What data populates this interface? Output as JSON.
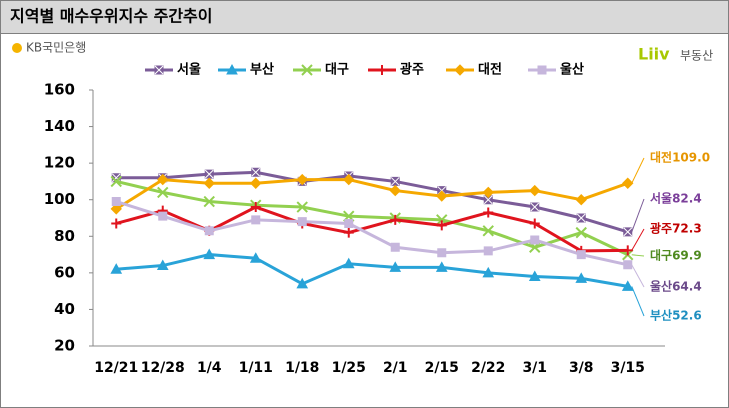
{
  "chart_data": {
    "type": "line",
    "title": "지역별 매수우위지수 주간추이",
    "logos": [
      "KB국민은행",
      "Liiv",
      "부동산"
    ],
    "categories": [
      "12/21",
      "12/28",
      "1/4",
      "1/11",
      "1/18",
      "1/25",
      "2/1",
      "2/15",
      "2/22",
      "3/1",
      "3/8",
      "3/15"
    ],
    "ylim": [
      20,
      160
    ],
    "yticks": [
      20,
      40,
      60,
      80,
      100,
      120,
      140,
      160
    ],
    "grid": false,
    "series": [
      {
        "name": "서울",
        "color": "#7b5c98",
        "marker": "xsquare",
        "values": [
          112,
          112,
          114,
          115,
          110,
          113,
          110,
          105,
          100,
          96,
          90,
          82.4
        ],
        "value_labels": [
          null,
          null,
          null,
          null,
          null,
          null,
          null,
          null,
          null,
          null,
          null,
          "서울82.4"
        ]
      },
      {
        "name": "부산",
        "color": "#29a3d8",
        "marker": "triangle",
        "values": [
          62,
          64,
          70,
          68,
          54,
          65,
          63,
          63,
          60,
          58,
          57,
          52.6
        ],
        "value_labels": [
          null,
          null,
          null,
          null,
          null,
          null,
          null,
          null,
          null,
          null,
          null,
          "부산52.6"
        ]
      },
      {
        "name": "대구",
        "color": "#92d050",
        "marker": "x",
        "values": [
          110,
          104,
          99,
          97,
          96,
          91,
          90,
          89,
          83,
          74,
          82,
          69.9
        ],
        "value_labels": [
          null,
          null,
          null,
          null,
          null,
          null,
          null,
          null,
          null,
          null,
          null,
          "대구69.9"
        ]
      },
      {
        "name": "광주",
        "color": "#e0141e",
        "marker": "plus",
        "values": [
          87,
          94,
          83,
          96,
          87,
          82,
          89,
          86,
          93,
          87,
          72,
          72.3
        ],
        "value_labels": [
          null,
          null,
          null,
          null,
          null,
          null,
          null,
          null,
          null,
          null,
          null,
          "광주72.3"
        ]
      },
      {
        "name": "대전",
        "color": "#f5a800",
        "marker": "diamond",
        "values": [
          95,
          111,
          109,
          109,
          111,
          111,
          105,
          102,
          104,
          105,
          100,
          109
        ],
        "value_labels": [
          null,
          null,
          null,
          null,
          null,
          null,
          null,
          null,
          null,
          null,
          null,
          "대전109.0"
        ]
      },
      {
        "name": "울산",
        "color": "#c6b6dc",
        "marker": "square",
        "values": [
          99,
          91,
          83,
          89,
          88,
          87,
          74,
          71,
          72,
          78,
          70,
          64.4
        ],
        "value_labels": [
          null,
          null,
          null,
          null,
          null,
          null,
          null,
          null,
          null,
          null,
          null,
          "울산64.4"
        ]
      }
    ]
  }
}
